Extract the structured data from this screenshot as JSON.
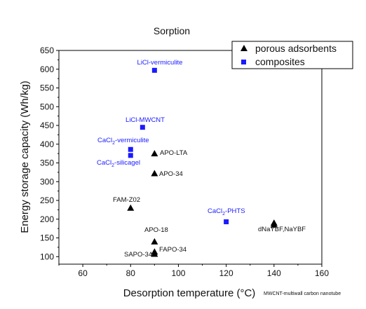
{
  "chart_data": {
    "type": "scatter",
    "title": "Sorption",
    "xlabel": "Desorption temperature (°C)",
    "ylabel": "Energy storage capacity (Wh/kg)",
    "xlim": [
      50,
      160
    ],
    "ylim": [
      80,
      650
    ],
    "xticks": [
      "60",
      "80",
      "100",
      "120",
      "140",
      "160"
    ],
    "yticks": [
      "100",
      "150",
      "200",
      "250",
      "300",
      "350",
      "400",
      "450",
      "500",
      "550",
      "600",
      "650"
    ],
    "legend_position": "top-right",
    "note": "MWCNT-multiwall carbon nanotube",
    "series": [
      {
        "name": "porous adsorbents",
        "marker": "triangle",
        "color": "#000000",
        "points": [
          {
            "label": "APO-LTA",
            "x": 90,
            "y": 375
          },
          {
            "label": "APO-34",
            "x": 90,
            "y": 322
          },
          {
            "label": "FAM-Z02",
            "x": 80,
            "y": 230
          },
          {
            "label": "APO-18",
            "x": 90,
            "y": 140
          },
          {
            "label": "FAPO-34",
            "x": 90,
            "y": 113
          },
          {
            "label": "SAPO-34",
            "x": 90,
            "y": 107
          },
          {
            "label": "dNaYBF",
            "x": 140,
            "y": 190
          },
          {
            "label": "NaYBF",
            "x": 140,
            "y": 185
          }
        ]
      },
      {
        "name": "composites",
        "marker": "square",
        "color": "#1a1aff",
        "points": [
          {
            "label": "LiCl-vermiculite",
            "x": 90,
            "y": 597
          },
          {
            "label": "LiCl-MWCNT",
            "x": 85,
            "y": 445
          },
          {
            "label": "CaCl2-vermiculite",
            "x": 80,
            "y": 386
          },
          {
            "label": "CaCl2-silicagel",
            "x": 80,
            "y": 370
          },
          {
            "label": "CaCl2-PHTS",
            "x": 120,
            "y": 193
          }
        ]
      }
    ],
    "annotations": [
      {
        "text": "LiCl-vermiculite",
        "color": "blue"
      },
      {
        "text": "LiCl-MWCNT",
        "color": "blue"
      },
      {
        "text": "CaCl",
        "sub": "2",
        "rest": "-vermiculite",
        "color": "blue"
      },
      {
        "text": "CaCl",
        "sub": "2",
        "rest": "-silicagel",
        "color": "blue"
      },
      {
        "text": "CaCl",
        "sub": "2",
        "rest": "-PHTS",
        "color": "blue"
      },
      {
        "text": "APO-LTA",
        "color": "black"
      },
      {
        "text": "APO-34",
        "color": "black"
      },
      {
        "text": "FAM-Z02",
        "color": "black"
      },
      {
        "text": "APO-18",
        "color": "black"
      },
      {
        "text": "FAPO-34",
        "color": "black"
      },
      {
        "text": "SAPO-34",
        "color": "black"
      },
      {
        "text": "dNaYBF,NaYBF",
        "color": "black"
      }
    ]
  }
}
